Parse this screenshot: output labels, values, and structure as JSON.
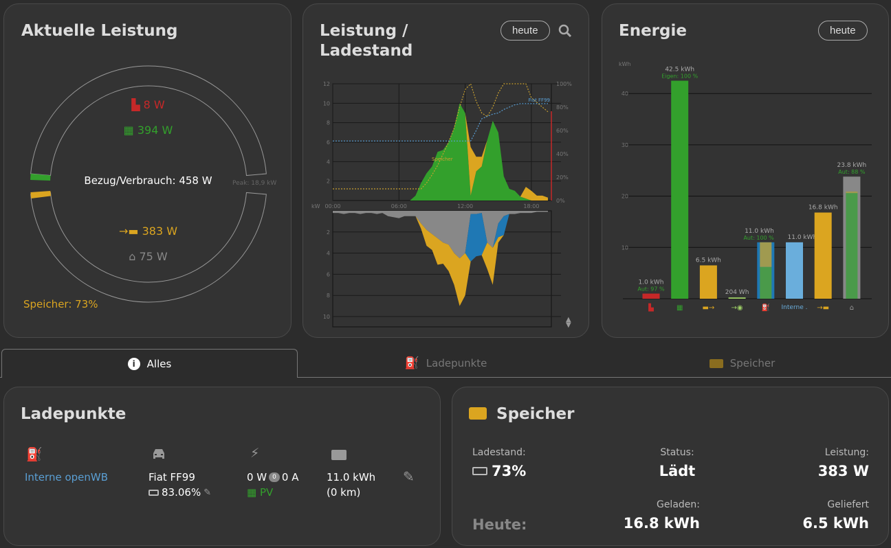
{
  "colors": {
    "grid": "#c62828",
    "pv": "#33a02c",
    "battery": "#dba520",
    "house": "#888888",
    "chargepoint": "#1f78b4",
    "chargepoint_light": "#6aaedc",
    "green_text": "#33a02c",
    "muted": "#777777",
    "link": "#5a9fd4"
  },
  "power_card": {
    "title": "Aktuelle Leistung",
    "grid_value": "8 W",
    "pv_value": "394 W",
    "center_label": "Bezug/Verbrauch: 458 W",
    "peak_label": "Peak: 18,9 kW",
    "battery_value": "383 W",
    "house_value": "75 W",
    "storage_soc": "Speicher: 73%"
  },
  "chart_card": {
    "title_line1": "Leistung /",
    "title_line2": "Ladestand",
    "range_button": "heute",
    "zoom_icon": "search-icon"
  },
  "energy_card": {
    "title": "Energie",
    "range_button": "heute"
  },
  "tabs": [
    {
      "label": "Alles",
      "icon": "info-icon",
      "active": true
    },
    {
      "label": "Ladepunkte",
      "icon": "charging-station-icon"
    },
    {
      "label": "Speicher",
      "icon": "battery-icon"
    }
  ],
  "chargepoints": {
    "title": "Ladepunkte",
    "name": "Interne openWB",
    "vehicle": "Fiat FF99",
    "vehicle_soc": "83.06%",
    "power": "0 W",
    "phases": "0",
    "current": "0 A",
    "mode": "PV",
    "energy": "11.0 kWh",
    "range": "(0 km)"
  },
  "storage": {
    "title": "Speicher",
    "soc_label": "Ladestand:",
    "soc_value": "73%",
    "status_label": "Status:",
    "status_value": "Lädt",
    "power_label": "Leistung:",
    "power_value": "383 W",
    "today_label": "Heute:",
    "charged_label": "Geladen:",
    "charged_value": "16.8 kWh",
    "delivered_label": "Geliefert",
    "delivered_value": "6.5 kWh"
  },
  "chart_data": [
    {
      "type": "area",
      "x_ticks": [
        "00:00",
        "06:00",
        "12:00",
        "18:00"
      ],
      "x_hours": [
        0,
        0.5,
        1,
        1.5,
        2,
        2.5,
        3,
        3.5,
        4,
        4.5,
        5,
        5.5,
        6,
        6.5,
        7,
        7.5,
        8,
        8.5,
        9,
        9.5,
        10,
        10.5,
        11,
        11.5,
        12,
        12.5,
        13,
        13.5,
        14,
        14.5,
        15,
        15.5,
        16,
        16.5,
        17,
        17.5,
        18,
        18.5,
        19,
        19.5
      ],
      "upper": {
        "ylabel": "kW",
        "yticks": [
          2,
          4,
          6,
          8,
          10,
          12
        ],
        "ylim": [
          0,
          12
        ],
        "y2ticks": [
          "0%",
          "20%",
          "40%",
          "60%",
          "80%",
          "100%"
        ],
        "series": [
          {
            "key": "pv",
            "values": [
              0,
              0,
              0,
              0,
              0,
              0,
              0,
              0,
              0,
              0,
              0,
              0,
              0,
              0,
              0,
              0.5,
              1.8,
              2.8,
              3.5,
              5,
              5.2,
              6,
              7.5,
              10,
              9,
              0.5,
              3,
              3.5,
              6.2,
              8.2,
              7,
              2.5,
              1.2,
              1,
              0.4,
              0.2,
              0,
              0,
              0,
              0
            ]
          },
          {
            "key": "battery_discharge",
            "values": [
              0,
              0,
              0,
              0,
              0,
              0,
              0,
              0,
              0,
              0,
              0,
              0,
              0,
              0,
              0,
              0,
              0,
              0,
              0,
              0,
              0,
              0,
              0,
              0,
              0,
              5,
              1.5,
              1,
              0,
              0,
              0,
              0,
              0,
              0,
              0,
              1.2,
              1,
              0.5,
              0.5,
              0.3
            ]
          }
        ],
        "lines": [
          {
            "name": "Speicher",
            "values": [
              10,
              10,
              10,
              10,
              10,
              10,
              10,
              10,
              10,
              10,
              10,
              10,
              10,
              10,
              10,
              10,
              10,
              15,
              22,
              30,
              40,
              50,
              62,
              80,
              95,
              100,
              85,
              75,
              72,
              80,
              92,
              100,
              100,
              100,
              100,
              100,
              88,
              84,
              80,
              76
            ]
          },
          {
            "name": "Fiat FF99",
            "values": [
              51,
              51,
              51,
              51,
              51,
              51,
              51,
              51,
              51,
              51,
              51,
              51,
              51,
              51,
              51,
              51,
              51,
              51,
              51,
              51,
              51,
              51,
              51,
              51,
              51,
              51,
              60,
              70,
              72,
              74,
              75,
              78,
              80,
              82,
              83,
              83,
              83,
              83,
              83,
              83
            ]
          }
        ]
      },
      "lower": {
        "yticks": [
          2,
          4,
          6,
          8,
          10
        ],
        "ylim": [
          0,
          11
        ],
        "series": [
          {
            "key": "house",
            "values": [
              0.2,
              0.2,
              0.3,
              0.2,
              0.2,
              0.3,
              0.2,
              0.2,
              0.3,
              0.2,
              0.5,
              0.6,
              0.7,
              0.5,
              0.5,
              0.5,
              1.2,
              1.8,
              2.2,
              2.6,
              3,
              3.2,
              4,
              4.5,
              4,
              0.3,
              0.3,
              0.2,
              3,
              3.5,
              1.2,
              0.5,
              0.3,
              0.3,
              0.2,
              0.2,
              0.2,
              0.1,
              0.1,
              0.1
            ]
          },
          {
            "key": "chargepoint",
            "values": [
              0,
              0,
              0,
              0,
              0,
              0,
              0,
              0,
              0,
              0,
              0,
              0,
              0,
              0,
              0,
              0,
              0,
              0,
              0,
              0,
              0,
              0,
              0,
              0,
              0,
              4.5,
              4,
              4,
              0,
              0,
              1.3,
              1.8,
              0,
              0,
              0,
              0,
              0,
              0,
              0,
              0
            ]
          },
          {
            "key": "battery_charge",
            "values": [
              0,
              0,
              0,
              0,
              0,
              0,
              0,
              0,
              0,
              0,
              0,
              0,
              0,
              0,
              0,
              0,
              0.5,
              1.5,
              1.5,
              2.5,
              2,
              2.5,
              3,
              4.5,
              4,
              0,
              0,
              0,
              2.5,
              3.5,
              0.5,
              0,
              0,
              0,
              0,
              0,
              0,
              0,
              0,
              0
            ]
          }
        ]
      }
    },
    {
      "type": "bar",
      "ylabel": "kWh",
      "yticks": [
        10,
        20,
        30,
        40
      ],
      "ylim": [
        0,
        45
      ],
      "bars": [
        {
          "icon": "grid-icon",
          "value": 1.0,
          "label": "1.0 kWh",
          "sublabel": "Aut: 97 %",
          "color": "#c62828"
        },
        {
          "icon": "solar-panel-icon",
          "value": 42.5,
          "label": "42.5 kWh",
          "sublabel": "Eigen: 100 %",
          "color": "#33a02c"
        },
        {
          "icon": "battery-discharge-icon",
          "value": 6.5,
          "label": "6.5 kWh",
          "color": "#dba520"
        },
        {
          "icon": "grid-export-icon",
          "value": 0.204,
          "label": "204 Wh",
          "color": "#9ccc65"
        },
        {
          "icon": "charging-station-icon",
          "value": 11.0,
          "label": "11.0 kWh",
          "sublabel": "Aut: 100 %",
          "color": "#1f78b4",
          "inner_pv": 6.2,
          "inner_battery": 4.8
        },
        {
          "text": "Interne .",
          "value": 11.0,
          "label": "11.0 kWh",
          "color": "#6aaedc"
        },
        {
          "icon": "battery-charge-icon",
          "value": 16.8,
          "label": "16.8 kWh",
          "color": "#dba520"
        },
        {
          "icon": "house-icon",
          "value": 23.8,
          "label": "23.8 kWh",
          "sublabel": "Aut: 88 %",
          "color": "#888888",
          "inner_pv": 20.6,
          "inner_battery": 0.3
        }
      ]
    }
  ]
}
